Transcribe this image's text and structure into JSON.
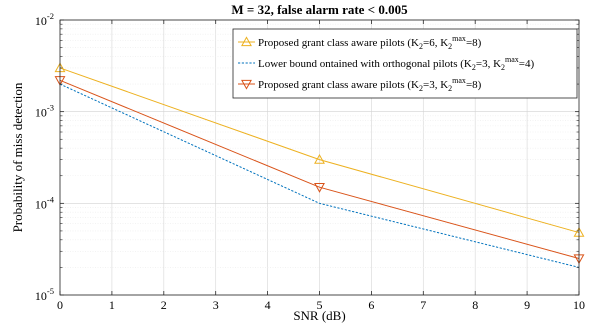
{
  "chart_data": {
    "type": "line",
    "title": "M = 32, false alarm rate < 0.005",
    "xlabel": "SNR (dB)",
    "ylabel": "Probability of miss detection",
    "xlim": [
      0,
      10
    ],
    "ylim": [
      1e-05,
      0.01
    ],
    "yscale": "log",
    "grid": "on (major and minor)",
    "legend_position": "top-right",
    "x_ticks": [
      "0",
      "1",
      "2",
      "3",
      "4",
      "5",
      "6",
      "7",
      "8",
      "9",
      "10"
    ],
    "y_ticks": [
      {
        "base": "10",
        "exp": "-5",
        "value": 1e-05
      },
      {
        "base": "10",
        "exp": "-4",
        "value": 0.0001
      },
      {
        "base": "10",
        "exp": "-3",
        "value": 0.001
      },
      {
        "base": "10",
        "exp": "-2",
        "value": 0.01
      }
    ],
    "series": [
      {
        "legend": [
          {
            "t": "Proposed grant class aware pilots (K"
          },
          {
            "t": "2",
            "s": "sub"
          },
          {
            "t": "=6, K"
          },
          {
            "t": "2",
            "s": "sub"
          },
          {
            "t": "max",
            "s": "sup"
          },
          {
            "t": "=8)"
          }
        ],
        "color": "#EDB120",
        "dash": "solid",
        "marker": "triangle-up",
        "points": [
          [
            0,
            0.003
          ],
          [
            5,
            0.0003
          ],
          [
            10,
            4.8e-05
          ]
        ]
      },
      {
        "legend": [
          {
            "t": "Lower bound ontained with orthogonal pilots (K"
          },
          {
            "t": "2",
            "s": "sub"
          },
          {
            "t": "=3, K"
          },
          {
            "t": "2",
            "s": "sub"
          },
          {
            "t": "max",
            "s": "sup"
          },
          {
            "t": "=4)"
          }
        ],
        "color": "#0072BD",
        "dash": "dotted",
        "marker": "none",
        "points": [
          [
            0,
            0.002
          ],
          [
            5,
            0.0001
          ],
          [
            10,
            2e-05
          ]
        ]
      },
      {
        "legend": [
          {
            "t": "Proposed grant class aware pilots (K"
          },
          {
            "t": "2",
            "s": "sub"
          },
          {
            "t": "=3, K"
          },
          {
            "t": "2",
            "s": "sub"
          },
          {
            "t": "max",
            "s": "sup"
          },
          {
            "t": "=8)"
          }
        ],
        "color": "#D95319",
        "dash": "solid",
        "marker": "triangle-down",
        "points": [
          [
            0,
            0.0022
          ],
          [
            5,
            0.00015
          ],
          [
            10,
            2.5e-05
          ]
        ]
      }
    ]
  }
}
